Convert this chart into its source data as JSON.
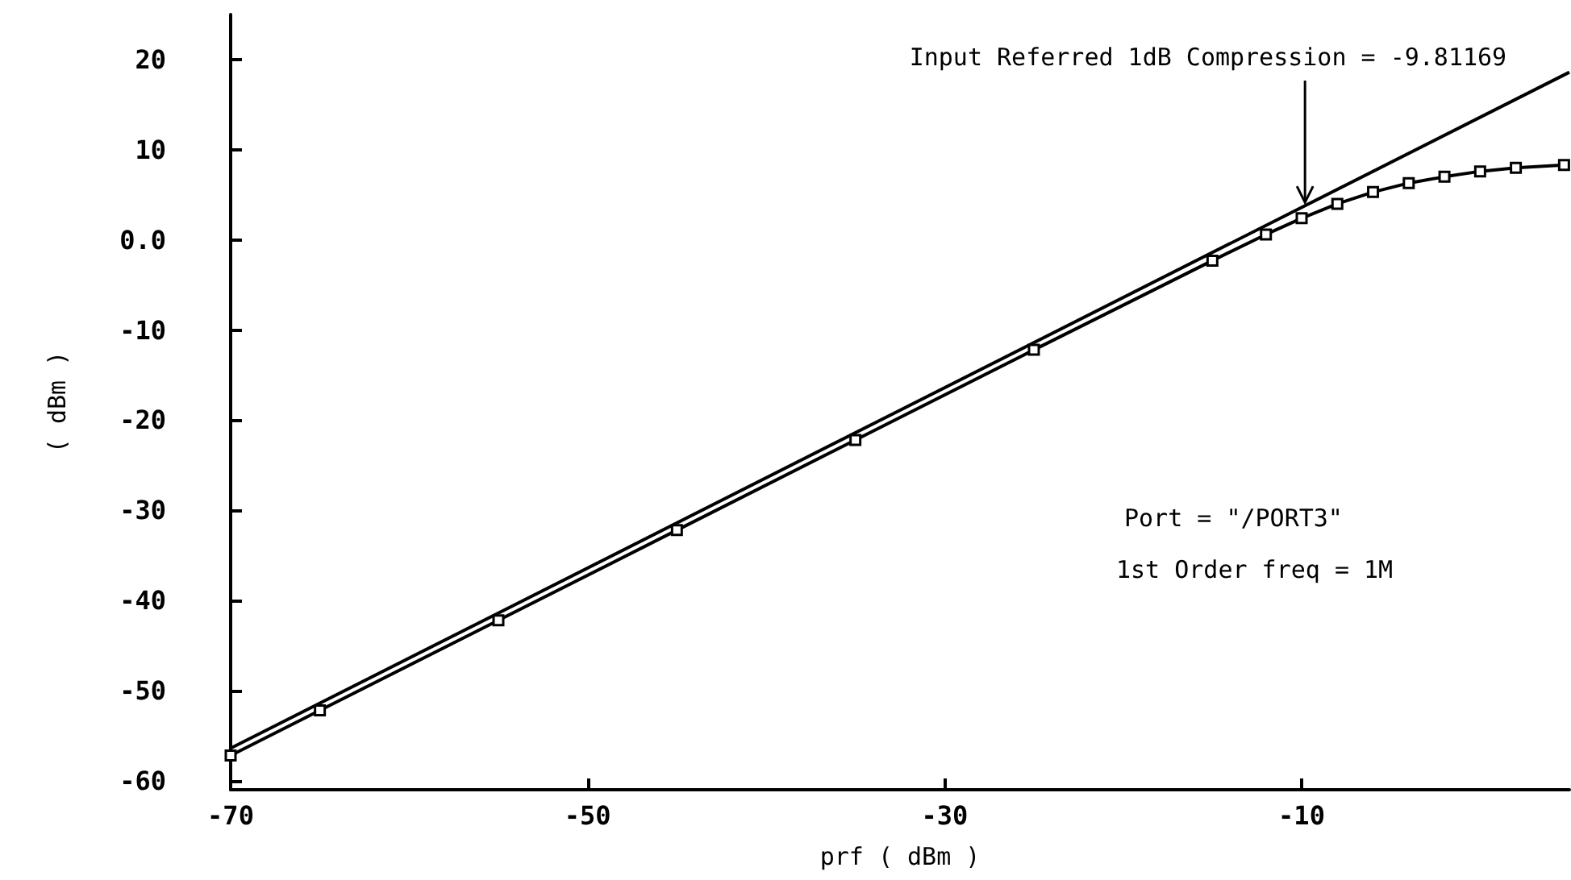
{
  "chart_data": {
    "type": "line",
    "xlabel": "prf ( dBm )",
    "ylabel": "( dBm )",
    "xlim": [
      -70,
      5
    ],
    "xticks": [
      -70,
      -50,
      -30,
      -10
    ],
    "ylim": [
      -61,
      25
    ],
    "yticks": [
      20,
      10,
      {
        "value": 0,
        "label": "0.0"
      },
      -10,
      -20,
      -30,
      -40,
      -50,
      -60
    ],
    "grid": false,
    "series": [
      {
        "color": "#000000",
        "marker": "none",
        "x": [
          -70,
          5
        ],
        "values": [
          -56.4,
          18.6
        ]
      },
      {
        "color": "#000000",
        "marker": "square",
        "x": [
          -70,
          -65,
          -55,
          -45,
          -35,
          -25,
          -15,
          -12,
          -10,
          -8,
          -6,
          -4,
          -2,
          0,
          2,
          4.7
        ],
        "values": [
          -57.2,
          -52.2,
          -42.2,
          -32.2,
          -22.2,
          -12.2,
          -2.3,
          0.6,
          2.4,
          4.0,
          5.3,
          6.3,
          7.0,
          7.6,
          8.0,
          8.3
        ]
      }
    ],
    "annotations": [
      {
        "text": "Input Referred 1dB Compression = -9.81169",
        "x": -9.81169,
        "y": 3.8
      },
      "Port = \"/PORT3\"",
      "1st Order freq = 1M"
    ]
  }
}
